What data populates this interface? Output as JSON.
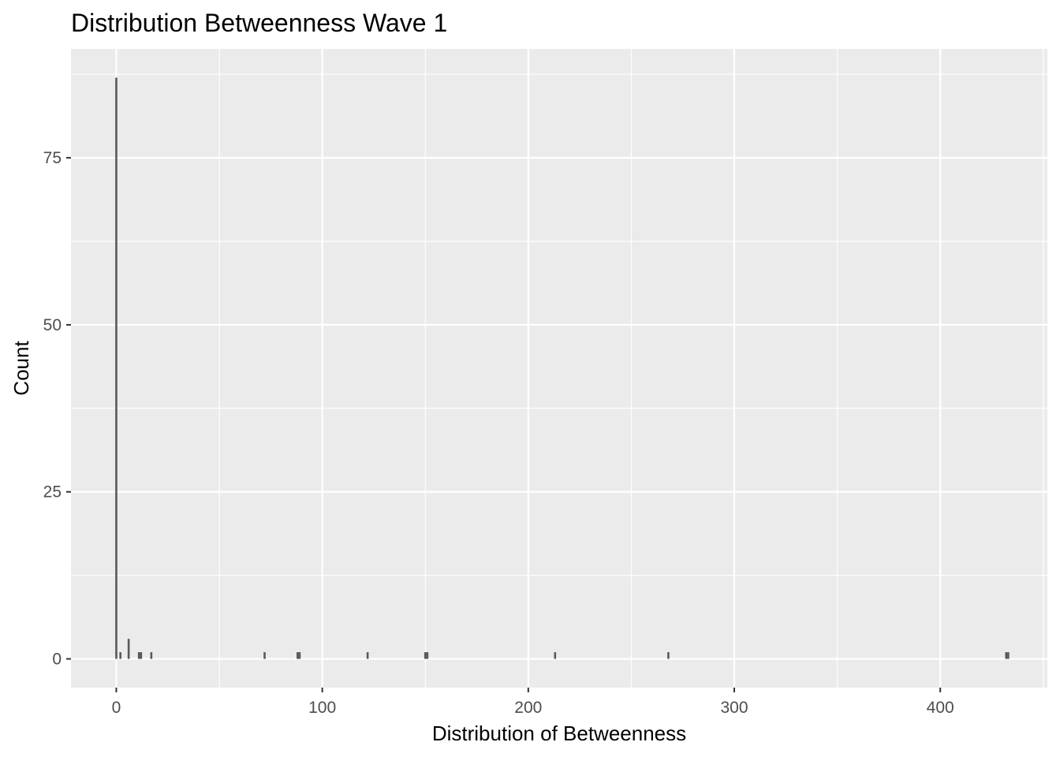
{
  "chart_data": {
    "type": "bar",
    "title": "Distribution Betweenness Wave 1",
    "xlabel": "Distribution of Betweenness",
    "ylabel": "Count",
    "xlim": [
      -22,
      452
    ],
    "ylim": [
      -4.3,
      91.3
    ],
    "x_ticks": [
      0,
      100,
      200,
      300,
      400
    ],
    "x_tick_labels": [
      "0",
      "100",
      "200",
      "300",
      "400"
    ],
    "y_ticks": [
      0,
      25,
      50,
      75
    ],
    "y_tick_labels": [
      "0",
      "25",
      "50",
      "75"
    ],
    "grid": true,
    "bar_width": 1,
    "bars": [
      {
        "x": 0,
        "count": 87
      },
      {
        "x": 2,
        "count": 1
      },
      {
        "x": 6,
        "count": 3
      },
      {
        "x": 11,
        "count": 1
      },
      {
        "x": 12,
        "count": 1
      },
      {
        "x": 17,
        "count": 1
      },
      {
        "x": 72,
        "count": 1
      },
      {
        "x": 88,
        "count": 1
      },
      {
        "x": 89,
        "count": 1
      },
      {
        "x": 122,
        "count": 1
      },
      {
        "x": 150,
        "count": 1
      },
      {
        "x": 151,
        "count": 1
      },
      {
        "x": 213,
        "count": 1
      },
      {
        "x": 268,
        "count": 1
      },
      {
        "x": 432,
        "count": 1
      },
      {
        "x": 433,
        "count": 1
      }
    ],
    "colors": {
      "panel": "#ebebeb",
      "grid_major": "#ffffff",
      "bar": "#595959"
    }
  }
}
